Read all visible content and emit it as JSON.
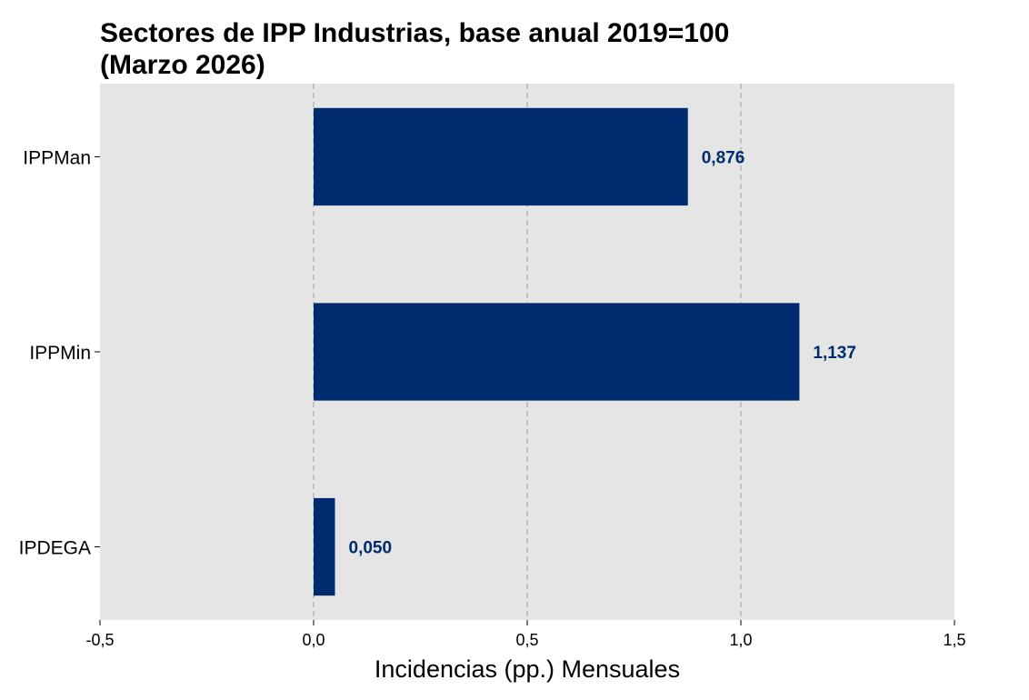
{
  "chart_data": {
    "type": "bar",
    "orientation": "horizontal",
    "title_lines": [
      "Sectores de IPP Industrias, base anual 2019=100",
      "(Marzo 2026)"
    ],
    "xlabel": "Incidencias (pp.) Mensuales",
    "ylabel": "",
    "categories": [
      "IPPMan",
      "IPPMin",
      "IPDEGA"
    ],
    "values": [
      0.876,
      1.137,
      0.05
    ],
    "data_labels": [
      "0,876",
      "1,137",
      "0,050"
    ],
    "xlim": [
      -0.5,
      1.5
    ],
    "xticks": [
      -0.5,
      0.0,
      0.5,
      1.0,
      1.5
    ],
    "xtick_labels": [
      "-0,5",
      "0,0",
      "0,5",
      "1,0",
      "1,5"
    ],
    "grid": "vertical dashed",
    "colors": {
      "bar": "#002B6E",
      "label": "#002B6E",
      "background": "#E5E5E5",
      "grid": "#AAAAAA"
    }
  }
}
